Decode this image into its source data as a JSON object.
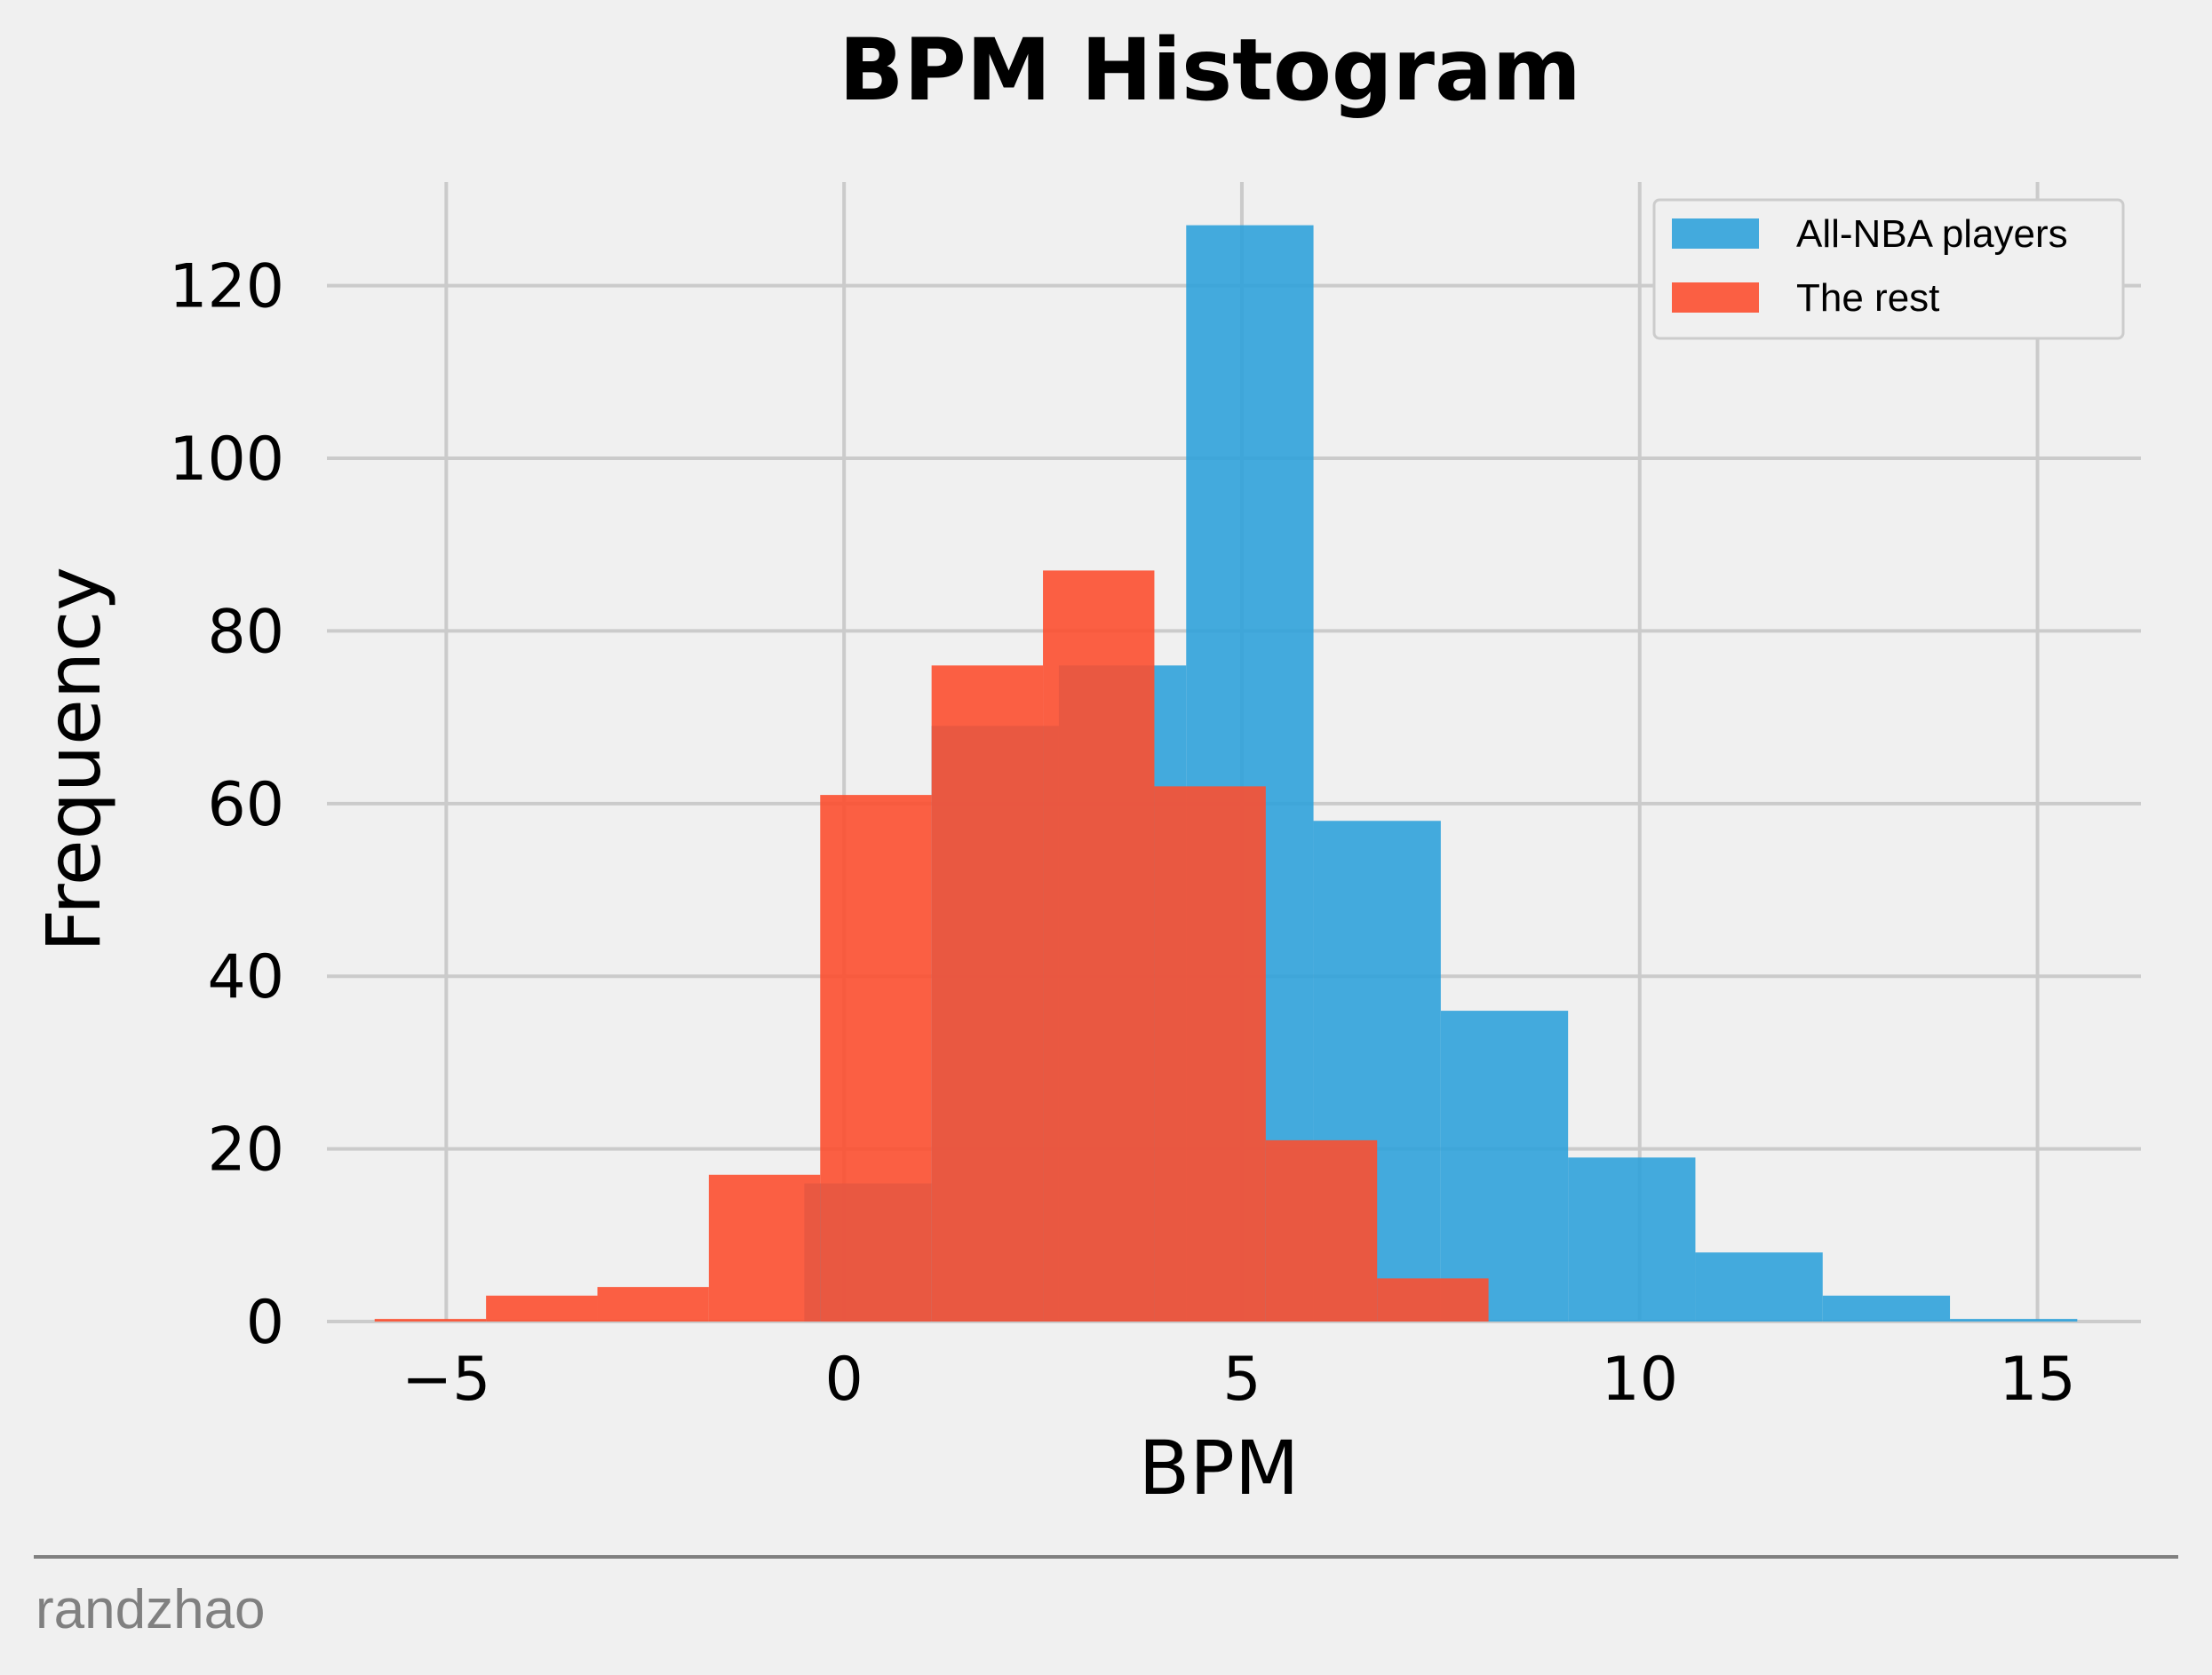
{
  "chart_data": {
    "type": "bar",
    "title": "BPM Histogram",
    "xlabel": "BPM",
    "ylabel": "Frequency",
    "xlim": [
      -6.5,
      16.3
    ],
    "ylim": [
      0,
      132
    ],
    "xticks": [
      -5,
      0,
      5,
      10,
      15
    ],
    "xtick_labels": [
      "−5",
      "0",
      "5",
      "10",
      "15"
    ],
    "yticks": [
      0,
      20,
      40,
      60,
      80,
      100,
      120
    ],
    "ytick_labels": [
      "0",
      "20",
      "40",
      "60",
      "80",
      "100",
      "120"
    ],
    "grid": true,
    "legend_position": "top-right",
    "series": [
      {
        "name": "All-NBA players",
        "color": "#30a2da",
        "bin_edges": [
          -0.5,
          1.1,
          2.7,
          4.3,
          5.9,
          7.5,
          9.1,
          10.7,
          12.3,
          13.9,
          15.5
        ],
        "values": [
          16,
          69,
          76,
          127,
          58,
          36,
          19,
          8,
          3,
          0.3
        ]
      },
      {
        "name": "The rest",
        "color": "#fc4f30",
        "bin_edges": [
          -5.9,
          -4.5,
          -3.1,
          -1.7,
          -0.3,
          1.1,
          2.5,
          3.9,
          5.3,
          6.7,
          8.1
        ],
        "values": [
          0.3,
          3,
          4,
          17,
          61,
          76,
          87,
          62,
          21,
          5
        ]
      }
    ]
  },
  "footer": {
    "credit": "randzhao"
  }
}
